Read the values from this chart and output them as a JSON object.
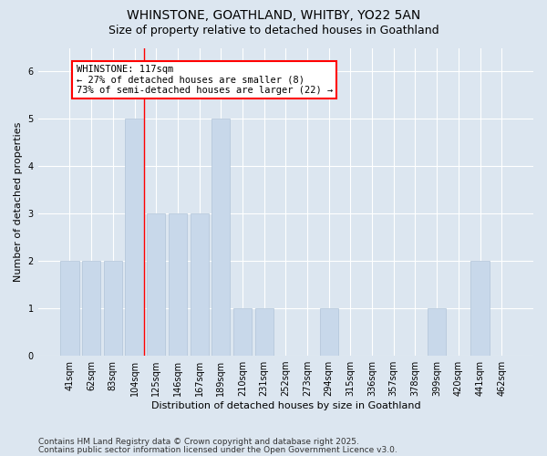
{
  "title_line1": "WHINSTONE, GOATHLAND, WHITBY, YO22 5AN",
  "title_line2": "Size of property relative to detached houses in Goathland",
  "xlabel": "Distribution of detached houses by size in Goathland",
  "ylabel": "Number of detached properties",
  "categories": [
    "41sqm",
    "62sqm",
    "83sqm",
    "104sqm",
    "125sqm",
    "146sqm",
    "167sqm",
    "189sqm",
    "210sqm",
    "231sqm",
    "252sqm",
    "273sqm",
    "294sqm",
    "315sqm",
    "336sqm",
    "357sqm",
    "378sqm",
    "399sqm",
    "420sqm",
    "441sqm",
    "462sqm"
  ],
  "values": [
    2,
    2,
    2,
    5,
    3,
    3,
    3,
    5,
    1,
    1,
    0,
    0,
    1,
    0,
    0,
    0,
    0,
    1,
    0,
    2,
    0
  ],
  "bar_color": "#c8d8ea",
  "bar_edgecolor": "#b0c4d8",
  "property_bin_index": 3,
  "annotation_text": "WHINSTONE: 117sqm\n← 27% of detached houses are smaller (8)\n73% of semi-detached houses are larger (22) →",
  "annotation_box_color": "white",
  "annotation_box_edgecolor": "red",
  "redline_color": "red",
  "ylim": [
    0,
    6.5
  ],
  "yticks": [
    0,
    1,
    2,
    3,
    4,
    5,
    6
  ],
  "background_color": "#dce6f0",
  "plot_background_color": "#dce6f0",
  "grid_color": "white",
  "footer_line1": "Contains HM Land Registry data © Crown copyright and database right 2025.",
  "footer_line2": "Contains public sector information licensed under the Open Government Licence v3.0.",
  "title_fontsize": 10,
  "subtitle_fontsize": 9,
  "axis_label_fontsize": 8,
  "tick_fontsize": 7,
  "annotation_fontsize": 7.5,
  "footer_fontsize": 6.5
}
